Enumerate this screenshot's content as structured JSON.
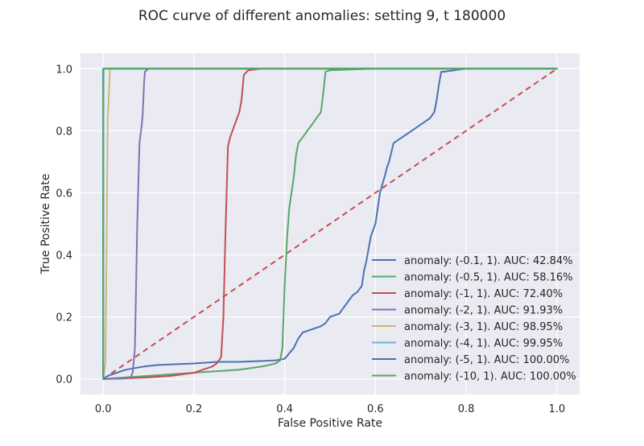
{
  "chart_data": {
    "type": "line",
    "title": "ROC curve of different anomalies: setting 9, t 180000",
    "xlabel": "False Positive Rate",
    "ylabel": "True Positive Rate",
    "xlim": [
      -0.05,
      1.05
    ],
    "ylim": [
      -0.05,
      1.05
    ],
    "xticks": [
      "0.0",
      "0.2",
      "0.4",
      "0.6",
      "0.8",
      "1.0"
    ],
    "yticks": [
      "0.0",
      "0.2",
      "0.4",
      "0.6",
      "0.8",
      "1.0"
    ],
    "grid": true,
    "legend_position": "lower-right",
    "diagonal": {
      "style": "dashed",
      "color": "#c44e52",
      "x": [
        0,
        1
      ],
      "y": [
        0,
        1
      ]
    },
    "series": [
      {
        "name": "anomaly: (-0.1, 1). AUC: 42.84%",
        "color": "#4c72b0",
        "x": [
          0,
          0.01,
          0.03,
          0.05,
          0.07,
          0.09,
          0.12,
          0.2,
          0.25,
          0.3,
          0.35,
          0.38,
          0.4,
          0.42,
          0.43,
          0.44,
          0.46,
          0.48,
          0.49,
          0.5,
          0.52,
          0.53,
          0.54,
          0.55,
          0.56,
          0.57,
          0.575,
          0.58,
          0.585,
          0.59,
          0.6,
          0.605,
          0.61,
          0.62,
          0.625,
          0.63,
          0.64,
          0.65,
          0.66,
          0.68,
          0.7,
          0.72,
          0.73,
          0.735,
          0.74,
          0.745,
          0.75,
          0.8,
          0.9,
          1.0
        ],
        "y": [
          0,
          0.01,
          0.02,
          0.03,
          0.035,
          0.04,
          0.045,
          0.05,
          0.055,
          0.055,
          0.058,
          0.06,
          0.065,
          0.1,
          0.13,
          0.15,
          0.16,
          0.17,
          0.18,
          0.2,
          0.21,
          0.23,
          0.25,
          0.27,
          0.28,
          0.3,
          0.35,
          0.38,
          0.42,
          0.46,
          0.5,
          0.55,
          0.6,
          0.65,
          0.68,
          0.7,
          0.76,
          0.77,
          0.78,
          0.8,
          0.82,
          0.84,
          0.86,
          0.9,
          0.95,
          0.99,
          0.99,
          1.0,
          1.0,
          1.0
        ]
      },
      {
        "name": "anomaly: (-0.5, 1). AUC: 58.16%",
        "color": "#55a868",
        "x": [
          0,
          0.05,
          0.1,
          0.2,
          0.25,
          0.3,
          0.35,
          0.38,
          0.39,
          0.395,
          0.4,
          0.405,
          0.41,
          0.42,
          0.425,
          0.43,
          0.44,
          0.45,
          0.46,
          0.47,
          0.48,
          0.485,
          0.49,
          0.5,
          0.6,
          0.8,
          1.0
        ],
        "y": [
          0,
          0.005,
          0.01,
          0.02,
          0.025,
          0.03,
          0.04,
          0.05,
          0.06,
          0.1,
          0.3,
          0.45,
          0.55,
          0.65,
          0.72,
          0.76,
          0.78,
          0.8,
          0.82,
          0.84,
          0.86,
          0.92,
          0.99,
          0.995,
          1.0,
          1.0,
          1.0
        ]
      },
      {
        "name": "anomaly: (-1, 1). AUC: 72.40%",
        "color": "#c44e52",
        "x": [
          0,
          0.05,
          0.1,
          0.15,
          0.2,
          0.22,
          0.24,
          0.25,
          0.26,
          0.265,
          0.27,
          0.275,
          0.28,
          0.29,
          0.3,
          0.305,
          0.31,
          0.32,
          0.35,
          0.5,
          1.0
        ],
        "y": [
          0,
          0.002,
          0.005,
          0.01,
          0.02,
          0.03,
          0.04,
          0.05,
          0.07,
          0.2,
          0.5,
          0.75,
          0.78,
          0.82,
          0.86,
          0.9,
          0.98,
          0.995,
          1.0,
          1.0,
          1.0
        ]
      },
      {
        "name": "anomaly: (-2, 1). AUC: 91.93%",
        "color": "#8172b2",
        "x": [
          0,
          0.04,
          0.06,
          0.065,
          0.07,
          0.075,
          0.08,
          0.085,
          0.087,
          0.09,
          0.092,
          0.1,
          0.2,
          0.5,
          1.0
        ],
        "y": [
          0,
          0.001,
          0.005,
          0.02,
          0.1,
          0.5,
          0.76,
          0.82,
          0.85,
          0.95,
          0.99,
          1.0,
          1.0,
          1.0,
          1.0
        ]
      },
      {
        "name": "anomaly: (-3, 1). AUC: 98.95%",
        "color": "#ccb974",
        "x": [
          0,
          0.005,
          0.008,
          0.01,
          0.012,
          0.015,
          0.02,
          0.1,
          1.0
        ],
        "y": [
          0,
          0.05,
          0.5,
          0.84,
          0.9,
          1.0,
          1.0,
          1.0,
          1.0
        ]
      },
      {
        "name": "anomaly: (-4, 1). AUC: 99.95%",
        "color": "#64b5cd",
        "x": [
          0,
          0.0005,
          0.001,
          0.01,
          1.0
        ],
        "y": [
          0,
          0.9,
          1.0,
          1.0,
          1.0
        ]
      },
      {
        "name": "anomaly: (-5, 1). AUC: 100.00%",
        "color": "#4c72b0",
        "x": [
          0,
          0,
          1.0
        ],
        "y": [
          0,
          1.0,
          1.0
        ]
      },
      {
        "name": "anomaly: (-10, 1). AUC: 100.00%",
        "color": "#55a868",
        "x": [
          0,
          0,
          1.0
        ],
        "y": [
          0,
          1.0,
          1.0
        ]
      }
    ]
  }
}
